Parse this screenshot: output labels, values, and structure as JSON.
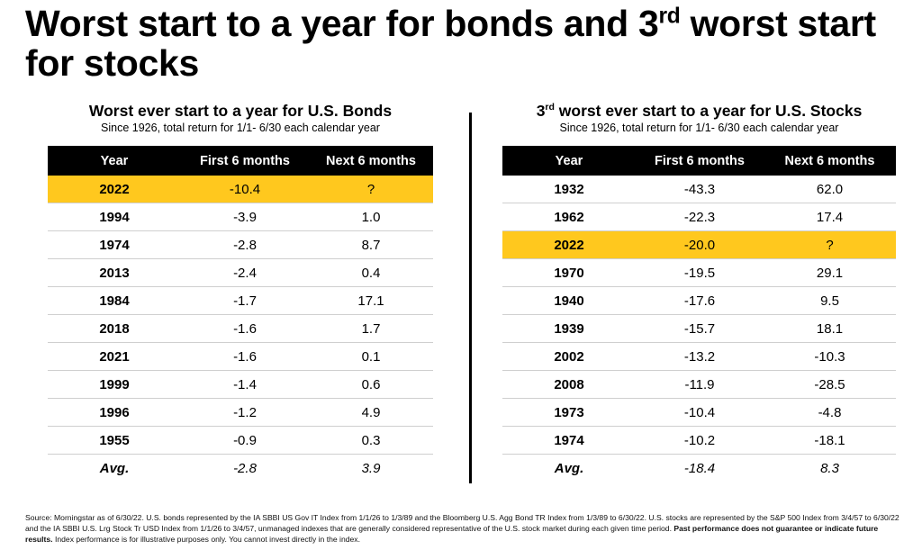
{
  "title_part1": "Worst start to a year for bonds and 3",
  "title_sup": "rd",
  "title_part2": " worst start for stocks",
  "chart_data": [
    {
      "type": "table",
      "title": "Worst ever start to a year for U.S. Bonds",
      "subtitle": "Since 1926, total return for 1/1- 6/30 each calendar year",
      "columns": [
        "Year",
        "First 6  months",
        "Next 6 months"
      ],
      "highlight_year": "2022",
      "rows": [
        [
          "2022",
          "-10.4",
          "?"
        ],
        [
          "1994",
          "-3.9",
          "1.0"
        ],
        [
          "1974",
          "-2.8",
          "8.7"
        ],
        [
          "2013",
          "-2.4",
          "0.4"
        ],
        [
          "1984",
          "-1.7",
          "17.1"
        ],
        [
          "2018",
          "-1.6",
          "1.7"
        ],
        [
          "2021",
          "-1.6",
          "0.1"
        ],
        [
          "1999",
          "-1.4",
          "0.6"
        ],
        [
          "1996",
          "-1.2",
          "4.9"
        ],
        [
          "1955",
          "-0.9",
          "0.3"
        ],
        [
          "Avg.",
          "-2.8",
          "3.9"
        ]
      ]
    },
    {
      "type": "table",
      "title_prefix": "3",
      "title_sup": "rd",
      "title_rest": " worst ever start to a year for U.S. Stocks",
      "subtitle": "Since 1926, total return for 1/1- 6/30 each calendar year",
      "columns": [
        "Year",
        "First 6  months",
        "Next 6 months"
      ],
      "highlight_year": "2022",
      "rows": [
        [
          "1932",
          "-43.3",
          "62.0"
        ],
        [
          "1962",
          "-22.3",
          "17.4"
        ],
        [
          "2022",
          "-20.0",
          "?"
        ],
        [
          "1970",
          "-19.5",
          "29.1"
        ],
        [
          "1940",
          "-17.6",
          "9.5"
        ],
        [
          "1939",
          "-15.7",
          "18.1"
        ],
        [
          "2002",
          "-13.2",
          "-10.3"
        ],
        [
          "2008",
          "-11.9",
          "-28.5"
        ],
        [
          "1973",
          "-10.4",
          "-4.8"
        ],
        [
          "1974",
          "-10.2",
          "-18.1"
        ],
        [
          "Avg.",
          "-18.4",
          "8.3"
        ]
      ]
    }
  ],
  "colors": {
    "highlight": "#ffc81e",
    "header_bg": "#000000",
    "header_text": "#ffffff"
  },
  "footnote": {
    "text": "Source: Morningstar as of 6/30/22. U.S. bonds represented by the IA SBBI US Gov IT Index from 1/1/26 to 1/3/89 and the Bloomberg U.S. Agg Bond TR Index from 1/3/89 to 6/30/22. U.S. stocks are represented by the S&P 500 Index from 3/4/57 to 6/30/22 and the IA SBBI U.S. Lrg Stock Tr USD Index from 1/1/26 to 3/4/57, unmanaged indexes that are generally considered representative of the U.S. stock market during each given time period. ",
    "bold": "Past performance does not guarantee or indicate future results.",
    "tail": " Index performance is for illustrative purposes only. You cannot invest directly in the index."
  }
}
